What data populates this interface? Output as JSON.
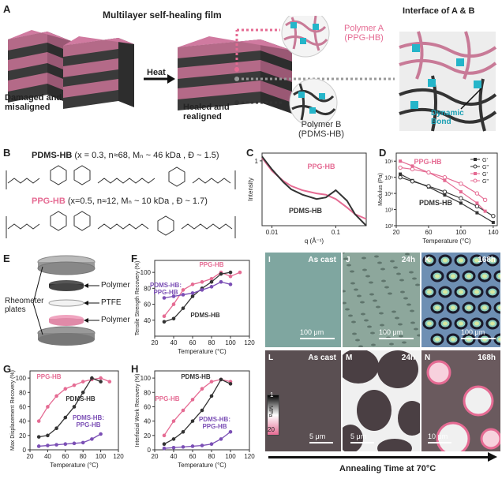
{
  "panels": {
    "A": "A",
    "B": "B",
    "C": "C",
    "D": "D",
    "E": "E",
    "F": "F",
    "G": "G",
    "H": "H",
    "I": "I",
    "J": "J",
    "K": "K",
    "L": "L",
    "M": "M",
    "N": "N"
  },
  "panelA": {
    "title": "Multilayer self-healing film",
    "damaged": "Damaged and\nmisaligned",
    "heat": "Heat",
    "healed": "Healed and\nrealigned",
    "polymerA": "Polymer A\n(PPG-HB)",
    "polymerB": "Polymer B\n(PDMS-HB)",
    "interface": "Interface of A & B",
    "dynamicBond": "Dynamic\nBond"
  },
  "panelB": {
    "pdms_name": "PDMS-HB",
    "pdms_params": "(x = 0.3, n≈68, Mₙ ~ 46 kDa , Đ ~ 1.5)",
    "ppg_name": "PPG-HB",
    "ppg_params": "(x=0.5, n≈12, Mₙ ~ 10 kDa , Đ ~ 1.7)"
  },
  "panelE": {
    "rheometer": "Rheometer\nplates",
    "polymer_top": "Polymer",
    "ptfe": "PTFE",
    "polymer_bottom": "Polymer"
  },
  "panelI": {
    "label": "As cast",
    "scale": "100 μm"
  },
  "panelJ": {
    "label": "24h",
    "scale": "100 μm"
  },
  "panelK": {
    "label": "168h",
    "scale": "100 μm"
  },
  "panelL": {
    "label": "As cast",
    "scale": "5 μm"
  },
  "panelM": {
    "label": "24h",
    "scale": "5 μm"
  },
  "panelN": {
    "label": "168h",
    "scale": "10 μm"
  },
  "colorbar": {
    "top": "1",
    "unit": "MPa",
    "bottom": "20"
  },
  "annealing": "Annealing Time at 70°C",
  "colors": {
    "pink": "#e56b93",
    "dark": "#333333",
    "purple": "#7b4fb5",
    "teal": "#25b5c9"
  },
  "chart_data": [
    {
      "id": "C",
      "type": "line",
      "xlabel": "q (Å⁻¹)",
      "ylabel": "Intensity",
      "xscale": "log",
      "yscale": "log",
      "xticks": [
        "0.01",
        "0.1"
      ],
      "yticks": [
        "1"
      ],
      "series": [
        {
          "name": "PPG-HB",
          "color": "#e56b93",
          "x": [
            0.007,
            0.01,
            0.015,
            0.02,
            0.03,
            0.05,
            0.07,
            0.1,
            0.15,
            0.2,
            0.3
          ],
          "y": [
            1.2,
            0.55,
            0.3,
            0.22,
            0.17,
            0.14,
            0.13,
            0.1,
            0.06,
            0.04,
            0.03
          ]
        },
        {
          "name": "PDMS-HB",
          "color": "#333333",
          "x": [
            0.007,
            0.01,
            0.015,
            0.02,
            0.03,
            0.05,
            0.07,
            0.1,
            0.15,
            0.2,
            0.3
          ],
          "y": [
            1.3,
            0.6,
            0.28,
            0.18,
            0.13,
            0.1,
            0.11,
            0.17,
            0.09,
            0.04,
            0.02
          ]
        }
      ]
    },
    {
      "id": "D",
      "type": "line",
      "xlabel": "Temperature (°C)",
      "ylabel": "Modulus (Pa)",
      "yscale": "log",
      "xticks": [
        "20",
        "60",
        "100",
        "140"
      ],
      "yticks": [
        "10²",
        "10³",
        "10⁴",
        "10⁵",
        "10⁶"
      ],
      "legend": [
        "G'",
        "G\"",
        "G'",
        "G\""
      ],
      "xlim": [
        20,
        145
      ],
      "ylim": [
        2,
        6.5
      ],
      "series": [
        {
          "name": "G'",
          "color": "#333333",
          "marker": "square",
          "x": [
            25,
            40,
            60,
            80,
            100,
            120,
            140
          ],
          "y": [
            5.2,
            4.8,
            4.4,
            3.9,
            3.4,
            2.8,
            2.2
          ]
        },
        {
          "name": "G\"",
          "color": "#333333",
          "marker": "circle",
          "x": [
            25,
            40,
            60,
            80,
            100,
            120,
            140
          ],
          "y": [
            5.0,
            4.75,
            4.45,
            4.1,
            3.7,
            3.2,
            2.6
          ]
        },
        {
          "name": "G'",
          "color": "#e56b93",
          "marker": "square",
          "x": [
            25,
            40,
            60,
            80,
            100,
            120,
            130
          ],
          "y": [
            6.0,
            5.7,
            5.3,
            4.8,
            4.1,
            3.4,
            2.9
          ]
        },
        {
          "name": "G\"",
          "color": "#e56b93",
          "marker": "circle",
          "x": [
            25,
            40,
            60,
            80,
            100,
            120,
            130
          ],
          "y": [
            5.6,
            5.5,
            5.3,
            5.0,
            4.6,
            4.0,
            3.6
          ]
        }
      ],
      "labels": [
        "PPG-HB",
        "PDMS-HB"
      ]
    },
    {
      "id": "F",
      "type": "line",
      "xlabel": "Temperature (°C)",
      "ylabel": "Tensile Strength Recovery (%)",
      "xlim": [
        20,
        120
      ],
      "ylim": [
        20,
        115
      ],
      "xticks": [
        "20",
        "40",
        "60",
        "80",
        "100",
        "120"
      ],
      "yticks": [
        "40",
        "60",
        "80",
        "100"
      ],
      "series": [
        {
          "name": "PPG-HB",
          "color": "#e56b93",
          "x": [
            30,
            40,
            50,
            60,
            70,
            80,
            90,
            100,
            110
          ],
          "y": [
            45,
            60,
            78,
            85,
            88,
            92,
            100,
            95,
            100
          ]
        },
        {
          "name": "PDMS-HB",
          "color": "#333333",
          "x": [
            30,
            40,
            50,
            60,
            70,
            80,
            90,
            100
          ],
          "y": [
            38,
            42,
            55,
            70,
            80,
            88,
            98,
            100
          ]
        },
        {
          "name": "PDMS-HB: PPG-HB",
          "color": "#7b4fb5",
          "x": [
            30,
            40,
            50,
            60,
            70,
            80,
            90,
            100
          ],
          "y": [
            68,
            70,
            72,
            74,
            78,
            82,
            88,
            85
          ]
        }
      ]
    },
    {
      "id": "G",
      "type": "line",
      "xlabel": "Temperature (°C)",
      "ylabel": "Max Displacement Recovery (%)",
      "xlim": [
        20,
        120
      ],
      "ylim": [
        0,
        110
      ],
      "xticks": [
        "20",
        "40",
        "60",
        "80",
        "100",
        "120"
      ],
      "yticks": [
        "0",
        "20",
        "40",
        "60",
        "80",
        "100"
      ],
      "series": [
        {
          "name": "PPG-HB",
          "color": "#e56b93",
          "x": [
            30,
            40,
            50,
            60,
            70,
            80,
            90,
            100,
            110
          ],
          "y": [
            40,
            60,
            75,
            85,
            90,
            95,
            98,
            100,
            95
          ]
        },
        {
          "name": "PDMS-HB",
          "color": "#333333",
          "x": [
            30,
            40,
            50,
            60,
            70,
            80,
            90,
            100
          ],
          "y": [
            18,
            20,
            30,
            45,
            60,
            80,
            100,
            95
          ]
        },
        {
          "name": "PDMS-HB: PPG-HB",
          "color": "#7b4fb5",
          "x": [
            30,
            40,
            50,
            60,
            70,
            80,
            90,
            100
          ],
          "y": [
            5,
            6,
            7,
            8,
            9,
            10,
            15,
            22
          ]
        }
      ]
    },
    {
      "id": "H",
      "type": "line",
      "xlabel": "Temperature (°C)",
      "ylabel": "Interfacial Work Recovery (%)",
      "xlim": [
        20,
        120
      ],
      "ylim": [
        0,
        110
      ],
      "xticks": [
        "20",
        "40",
        "60",
        "80",
        "100",
        "120"
      ],
      "yticks": [
        "0",
        "20",
        "40",
        "60",
        "80",
        "100"
      ],
      "series": [
        {
          "name": "PPG-HB",
          "color": "#e56b93",
          "x": [
            30,
            40,
            50,
            60,
            70,
            80,
            90,
            100
          ],
          "y": [
            20,
            40,
            55,
            70,
            85,
            95,
            98,
            95
          ]
        },
        {
          "name": "PDMS-HB",
          "color": "#333333",
          "x": [
            30,
            40,
            50,
            60,
            70,
            80,
            90,
            100
          ],
          "y": [
            8,
            15,
            25,
            40,
            55,
            75,
            98,
            92
          ]
        },
        {
          "name": "PDMS-HB: PPG-HB",
          "color": "#7b4fb5",
          "x": [
            30,
            40,
            50,
            60,
            70,
            80,
            90,
            100
          ],
          "y": [
            2,
            3,
            4,
            5,
            6,
            8,
            15,
            25
          ]
        }
      ]
    }
  ]
}
